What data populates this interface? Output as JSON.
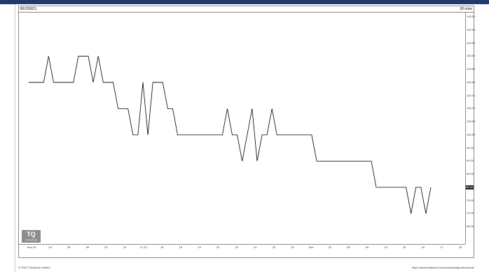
{
  "chart": {
    "symbol": "BFZ09021",
    "interval": "30 mins"
  },
  "footer": {
    "copyright": "© 2020 TheQuest Limited",
    "url": "https://www.thequest.com/products/tqprofessional/"
  },
  "logo": {
    "text": "TQ",
    "subtext": "Professional"
  },
  "colors": {
    "topbar": "#1f3a6b",
    "line": "#000000",
    "axis": "#8a8a8a"
  },
  "chart_data": {
    "type": "line",
    "ylim": [
      60,
      145
    ],
    "y_ticks": [
      "145.00",
      "140.00",
      "135.00",
      "130.00",
      "125.00",
      "120.00",
      "115.00",
      "110.00",
      "105.00",
      "100.00",
      "95.00",
      "90.00",
      "85.00",
      "80.00",
      "75.00",
      "70.00",
      "65.00"
    ],
    "x_ticks": [
      "Nov 03",
      "04",
      "05",
      "06",
      "09",
      "10",
      "12 13",
      "16",
      "18",
      "19",
      "20",
      "23",
      "24",
      "25",
      "26",
      "Dec",
      "02",
      "08",
      "09",
      "14",
      "15",
      "16",
      "17",
      "18"
    ],
    "last_price": "80.00",
    "series": [
      {
        "values": [
          120,
          120,
          120,
          120,
          130,
          120,
          120,
          120,
          120,
          120,
          130,
          130,
          130,
          120,
          130,
          120,
          120,
          120,
          110,
          110,
          110,
          100,
          100,
          120,
          100,
          120,
          120,
          120,
          110,
          110,
          100,
          100,
          100,
          100,
          100,
          100,
          100,
          100,
          100,
          100,
          110,
          100,
          100,
          90,
          100,
          110,
          90,
          100,
          100,
          110,
          100,
          100,
          100,
          100,
          100,
          100,
          100,
          100,
          90,
          90,
          90,
          90,
          90,
          90,
          90,
          90,
          90,
          90,
          90,
          90,
          80,
          80,
          80,
          80,
          80,
          80,
          80,
          70,
          80,
          80,
          70,
          80
        ]
      }
    ]
  }
}
